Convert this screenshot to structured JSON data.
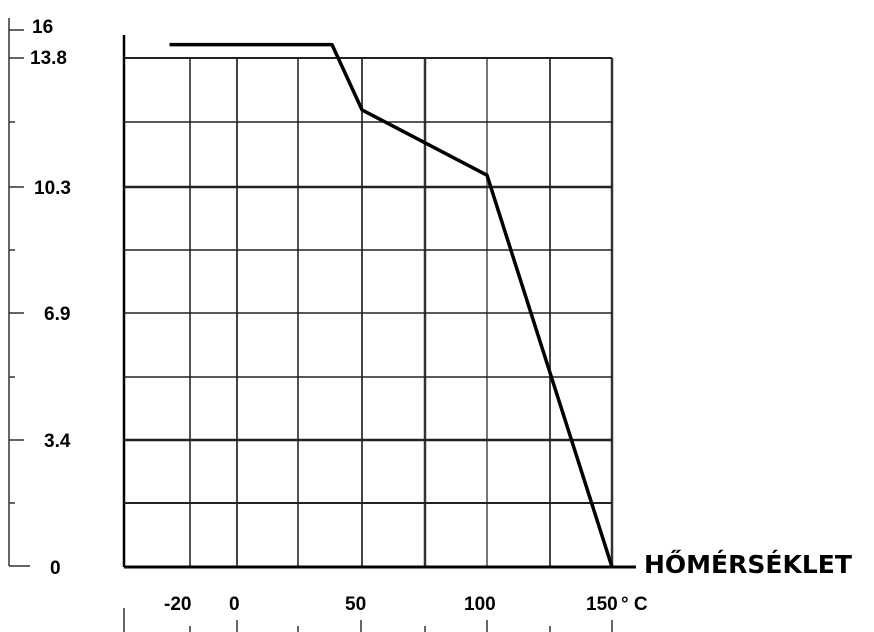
{
  "chart_data": {
    "type": "line",
    "title": "",
    "xlabel": "HŐMÉRSÉKLET",
    "ylabel": "",
    "x_unit": "° C",
    "x_tick_labels": [
      "-20",
      "0",
      "50",
      "100",
      "150"
    ],
    "y_tick_labels": [
      "0",
      "3.4",
      "6.9",
      "10.3",
      "13.8",
      "16"
    ],
    "xlim": [
      -35,
      150
    ],
    "ylim": [
      0,
      16
    ],
    "grid": true,
    "series": [
      {
        "x": [
          -27,
          38,
          50,
          100,
          150
        ],
        "y": [
          16,
          16,
          14,
          12,
          0
        ]
      }
    ]
  }
}
